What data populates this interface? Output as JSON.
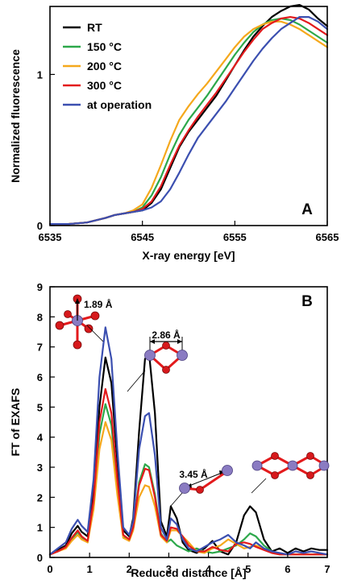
{
  "chart_data": [
    {
      "type": "line",
      "panel_label": "A",
      "xlabel": "X-ray energy [eV]",
      "ylabel": "Normalized fluorescence",
      "xlim": [
        6535,
        6565
      ],
      "ylim": [
        0,
        1.45
      ],
      "xticks": [
        "6535",
        "6545",
        "6555",
        "6565"
      ],
      "xtick_values": [
        6535,
        6545,
        6555,
        6565
      ],
      "yticks": [
        "0",
        "1"
      ],
      "ytick_values": [
        0,
        1
      ],
      "grid": false,
      "legend_position": "top-left",
      "series": [
        {
          "name": "RT",
          "color": "#000000",
          "x": [
            6535,
            6537,
            6539,
            6541,
            6542,
            6543,
            6544,
            6545,
            6546,
            6547,
            6548,
            6549,
            6550,
            6551,
            6552,
            6553,
            6554,
            6555,
            6556,
            6557,
            6558,
            6559,
            6560,
            6561,
            6562,
            6563,
            6564,
            6565
          ],
          "y": [
            0.01,
            0.01,
            0.02,
            0.05,
            0.07,
            0.08,
            0.09,
            0.1,
            0.15,
            0.24,
            0.38,
            0.52,
            0.62,
            0.7,
            0.78,
            0.86,
            0.96,
            1.06,
            1.16,
            1.25,
            1.32,
            1.38,
            1.42,
            1.45,
            1.46,
            1.43,
            1.37,
            1.32
          ]
        },
        {
          "name": "150 °C",
          "color": "#2ca84a",
          "x": [
            6535,
            6537,
            6539,
            6541,
            6542,
            6543,
            6544,
            6545,
            6546,
            6547,
            6548,
            6549,
            6550,
            6551,
            6552,
            6553,
            6554,
            6555,
            6556,
            6557,
            6558,
            6559,
            6560,
            6561,
            6562,
            6563,
            6564,
            6565
          ],
          "y": [
            0.01,
            0.01,
            0.02,
            0.05,
            0.07,
            0.08,
            0.09,
            0.12,
            0.2,
            0.32,
            0.47,
            0.6,
            0.7,
            0.78,
            0.86,
            0.95,
            1.04,
            1.13,
            1.21,
            1.28,
            1.33,
            1.36,
            1.37,
            1.36,
            1.33,
            1.29,
            1.25,
            1.21
          ]
        },
        {
          "name": "200 °C",
          "color": "#f5a81c",
          "x": [
            6535,
            6537,
            6539,
            6541,
            6542,
            6543,
            6544,
            6545,
            6546,
            6547,
            6548,
            6549,
            6550,
            6551,
            6552,
            6553,
            6554,
            6555,
            6556,
            6557,
            6558,
            6559,
            6560,
            6561,
            6562,
            6563,
            6564,
            6565
          ],
          "y": [
            0.01,
            0.01,
            0.02,
            0.05,
            0.07,
            0.08,
            0.1,
            0.14,
            0.25,
            0.4,
            0.56,
            0.7,
            0.79,
            0.87,
            0.94,
            1.02,
            1.1,
            1.18,
            1.25,
            1.3,
            1.33,
            1.35,
            1.35,
            1.33,
            1.3,
            1.26,
            1.22,
            1.18
          ]
        },
        {
          "name": "300 °C",
          "color": "#e31a1c",
          "x": [
            6535,
            6537,
            6539,
            6541,
            6542,
            6543,
            6544,
            6545,
            6546,
            6547,
            6548,
            6549,
            6550,
            6551,
            6552,
            6553,
            6554,
            6555,
            6556,
            6557,
            6558,
            6559,
            6560,
            6561,
            6562,
            6563,
            6564,
            6565
          ],
          "y": [
            0.01,
            0.01,
            0.02,
            0.05,
            0.07,
            0.08,
            0.09,
            0.11,
            0.16,
            0.26,
            0.4,
            0.53,
            0.63,
            0.72,
            0.8,
            0.88,
            0.97,
            1.06,
            1.15,
            1.23,
            1.3,
            1.34,
            1.37,
            1.38,
            1.37,
            1.34,
            1.3,
            1.26
          ]
        },
        {
          "name": "at operation",
          "color": "#3b4fb0",
          "x": [
            6535,
            6537,
            6539,
            6541,
            6542,
            6543,
            6544,
            6545,
            6546,
            6547,
            6548,
            6549,
            6550,
            6551,
            6552,
            6553,
            6554,
            6555,
            6556,
            6557,
            6558,
            6559,
            6560,
            6561,
            6562,
            6563,
            6564,
            6565
          ],
          "y": [
            0.01,
            0.01,
            0.02,
            0.05,
            0.07,
            0.08,
            0.09,
            0.1,
            0.12,
            0.16,
            0.24,
            0.35,
            0.47,
            0.58,
            0.66,
            0.74,
            0.82,
            0.91,
            1.0,
            1.09,
            1.17,
            1.24,
            1.3,
            1.34,
            1.38,
            1.38,
            1.35,
            1.3
          ]
        }
      ]
    },
    {
      "type": "line",
      "panel_label": "B",
      "xlabel": "Reduced distance [Å]",
      "ylabel": "FT of EXAFS",
      "xlim": [
        0,
        7
      ],
      "ylim": [
        0,
        9
      ],
      "xticks": [
        "0",
        "1",
        "2",
        "3",
        "4",
        "5",
        "6",
        "7"
      ],
      "xtick_values": [
        0,
        1,
        2,
        3,
        4,
        5,
        6,
        7
      ],
      "yticks": [
        "0",
        "1",
        "2",
        "3",
        "4",
        "5",
        "6",
        "7",
        "8",
        "9"
      ],
      "ytick_values": [
        0,
        1,
        2,
        3,
        4,
        5,
        6,
        7,
        8,
        9
      ],
      "grid": false,
      "annotations": [
        "1.89 Å",
        "2.86 Å",
        "3.45 Å"
      ],
      "series": [
        {
          "name": "RT",
          "color": "#000000",
          "x": [
            0,
            0.2,
            0.4,
            0.55,
            0.7,
            0.8,
            0.95,
            1.1,
            1.25,
            1.4,
            1.55,
            1.7,
            1.85,
            2.0,
            2.1,
            2.25,
            2.4,
            2.5,
            2.65,
            2.8,
            2.95,
            3.05,
            3.2,
            3.35,
            3.5,
            3.7,
            3.9,
            4.1,
            4.3,
            4.5,
            4.7,
            4.9,
            5.05,
            5.2,
            5.4,
            5.6,
            5.8,
            6.0,
            6.2,
            6.4,
            6.6,
            6.8,
            7.0
          ],
          "y": [
            0.1,
            0.25,
            0.4,
            0.8,
            1.05,
            0.85,
            0.7,
            2.2,
            5.0,
            6.65,
            5.8,
            3.2,
            0.9,
            0.7,
            1.3,
            4.2,
            6.6,
            6.8,
            4.8,
            1.2,
            0.7,
            1.7,
            1.3,
            0.5,
            0.25,
            0.15,
            0.3,
            0.55,
            0.2,
            0.1,
            0.5,
            1.4,
            1.7,
            1.5,
            0.6,
            0.2,
            0.3,
            0.15,
            0.3,
            0.2,
            0.3,
            0.25,
            0.25
          ]
        },
        {
          "name": "150 °C",
          "color": "#2ca84a",
          "x": [
            0,
            0.2,
            0.4,
            0.55,
            0.7,
            0.8,
            0.95,
            1.1,
            1.25,
            1.4,
            1.55,
            1.7,
            1.85,
            2.0,
            2.1,
            2.25,
            2.4,
            2.5,
            2.65,
            2.8,
            2.95,
            3.05,
            3.2,
            3.35,
            3.5,
            3.7,
            3.9,
            4.1,
            4.3,
            4.5,
            4.7,
            4.9,
            5.05,
            5.2,
            5.4,
            5.6,
            5.8,
            6.0,
            6.2,
            6.4,
            6.6,
            6.8,
            7.0
          ],
          "y": [
            0.1,
            0.2,
            0.35,
            0.6,
            0.85,
            0.65,
            0.5,
            1.8,
            4.1,
            5.1,
            4.4,
            2.4,
            0.7,
            0.6,
            1.0,
            2.5,
            3.1,
            3.0,
            2.1,
            0.8,
            0.5,
            0.6,
            0.4,
            0.3,
            0.2,
            0.3,
            0.2,
            0.15,
            0.2,
            0.3,
            0.4,
            0.6,
            0.8,
            0.7,
            0.4,
            0.2,
            0.1,
            0.1,
            0.1,
            0.1,
            0.1,
            0.1,
            0.1
          ]
        },
        {
          "name": "200 °C",
          "color": "#f5a81c",
          "x": [
            0,
            0.2,
            0.4,
            0.55,
            0.7,
            0.8,
            0.95,
            1.1,
            1.25,
            1.4,
            1.55,
            1.7,
            1.85,
            2.0,
            2.1,
            2.25,
            2.4,
            2.5,
            2.65,
            2.8,
            2.95,
            3.05,
            3.2,
            3.35,
            3.5,
            3.7,
            3.9,
            4.1,
            4.3,
            4.5,
            4.7,
            4.9,
            5.05,
            5.2,
            5.4,
            5.6,
            5.8,
            6.0,
            6.2,
            6.4,
            6.6,
            6.8,
            7.0
          ],
          "y": [
            0.1,
            0.2,
            0.3,
            0.55,
            0.75,
            0.6,
            0.5,
            1.6,
            3.6,
            4.5,
            3.9,
            2.1,
            0.65,
            0.55,
            0.9,
            2.0,
            2.4,
            2.35,
            1.7,
            0.7,
            0.5,
            0.9,
            0.9,
            0.7,
            0.5,
            0.2,
            0.15,
            0.3,
            0.4,
            0.6,
            0.45,
            0.3,
            0.35,
            0.4,
            0.3,
            0.15,
            0.1,
            0.1,
            0.1,
            0.1,
            0.1,
            0.1,
            0.1
          ]
        },
        {
          "name": "300 °C",
          "color": "#e31a1c",
          "x": [
            0,
            0.2,
            0.4,
            0.55,
            0.7,
            0.8,
            0.95,
            1.1,
            1.25,
            1.4,
            1.55,
            1.7,
            1.85,
            2.0,
            2.1,
            2.25,
            2.4,
            2.5,
            2.65,
            2.8,
            2.95,
            3.05,
            3.2,
            3.35,
            3.5,
            3.7,
            3.9,
            4.1,
            4.3,
            4.5,
            4.7,
            4.9,
            5.05,
            5.2,
            5.4,
            5.6,
            5.8,
            6.0,
            6.2,
            6.4,
            6.6,
            6.8,
            7.0
          ],
          "y": [
            0.1,
            0.2,
            0.35,
            0.65,
            0.9,
            0.7,
            0.55,
            1.9,
            4.5,
            5.6,
            4.8,
            2.6,
            0.75,
            0.6,
            1.0,
            2.4,
            2.95,
            2.9,
            2.0,
            0.75,
            0.55,
            1.0,
            0.95,
            0.7,
            0.4,
            0.2,
            0.2,
            0.35,
            0.25,
            0.2,
            0.45,
            0.5,
            0.45,
            0.35,
            0.25,
            0.15,
            0.1,
            0.1,
            0.1,
            0.1,
            0.1,
            0.1,
            0.1
          ]
        },
        {
          "name": "at operation",
          "color": "#3b4fb0",
          "x": [
            0,
            0.2,
            0.4,
            0.55,
            0.7,
            0.8,
            0.95,
            1.1,
            1.25,
            1.4,
            1.55,
            1.7,
            1.85,
            2.0,
            2.1,
            2.25,
            2.4,
            2.5,
            2.65,
            2.8,
            2.95,
            3.05,
            3.2,
            3.35,
            3.5,
            3.7,
            3.9,
            4.1,
            4.3,
            4.5,
            4.7,
            4.9,
            5.05,
            5.2,
            5.4,
            5.6,
            5.8,
            6.0,
            6.2,
            6.4,
            6.6,
            6.8,
            7.0
          ],
          "y": [
            0.1,
            0.3,
            0.5,
            0.95,
            1.25,
            1.05,
            0.85,
            2.6,
            6.0,
            7.65,
            6.6,
            3.6,
            1.0,
            0.75,
            1.2,
            3.6,
            4.7,
            4.8,
            3.4,
            1.0,
            0.6,
            1.3,
            1.1,
            0.6,
            0.3,
            0.2,
            0.35,
            0.5,
            0.6,
            0.75,
            0.5,
            0.4,
            0.3,
            0.5,
            0.3,
            0.2,
            0.15,
            0.1,
            0.2,
            0.15,
            0.2,
            0.15,
            0.1
          ]
        }
      ]
    }
  ]
}
